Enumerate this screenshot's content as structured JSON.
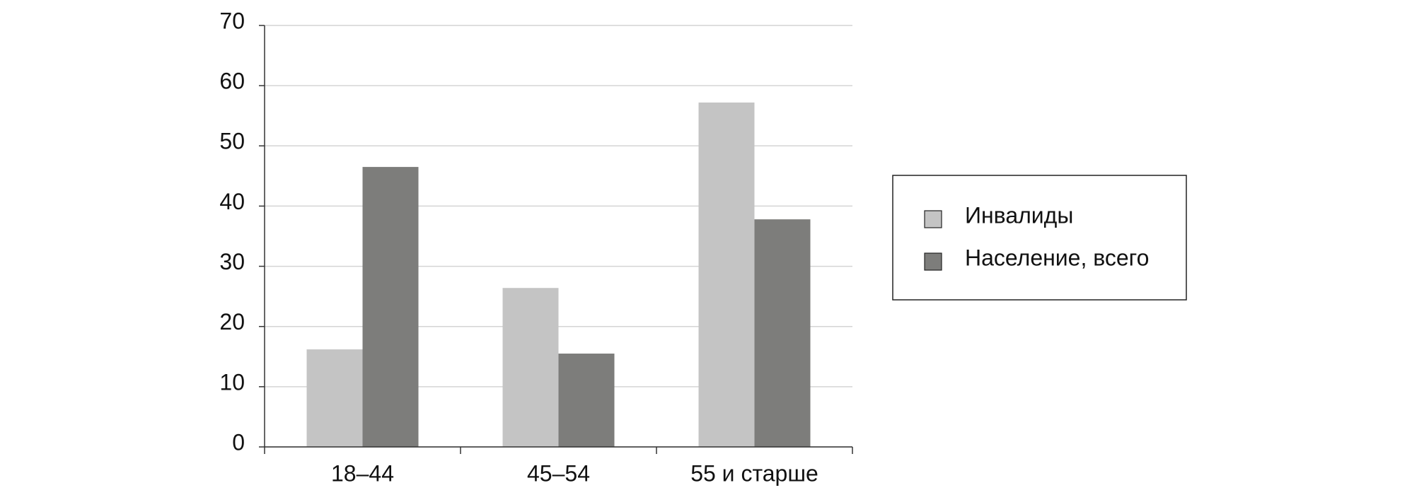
{
  "chart_data": {
    "type": "bar",
    "categories": [
      "18–44",
      "45–54",
      "55 и старше"
    ],
    "series": [
      {
        "name": "Инвалиды",
        "color": "#c4c4c4",
        "values": [
          16.2,
          26.4,
          57.2
        ]
      },
      {
        "name": "Население, всего",
        "color": "#7d7d7b",
        "values": [
          46.5,
          15.5,
          37.8
        ]
      }
    ],
    "ylim": [
      0,
      70
    ],
    "yticks": [
      0,
      10,
      20,
      30,
      40,
      50,
      60,
      70
    ],
    "grid": true,
    "legend": "right"
  }
}
